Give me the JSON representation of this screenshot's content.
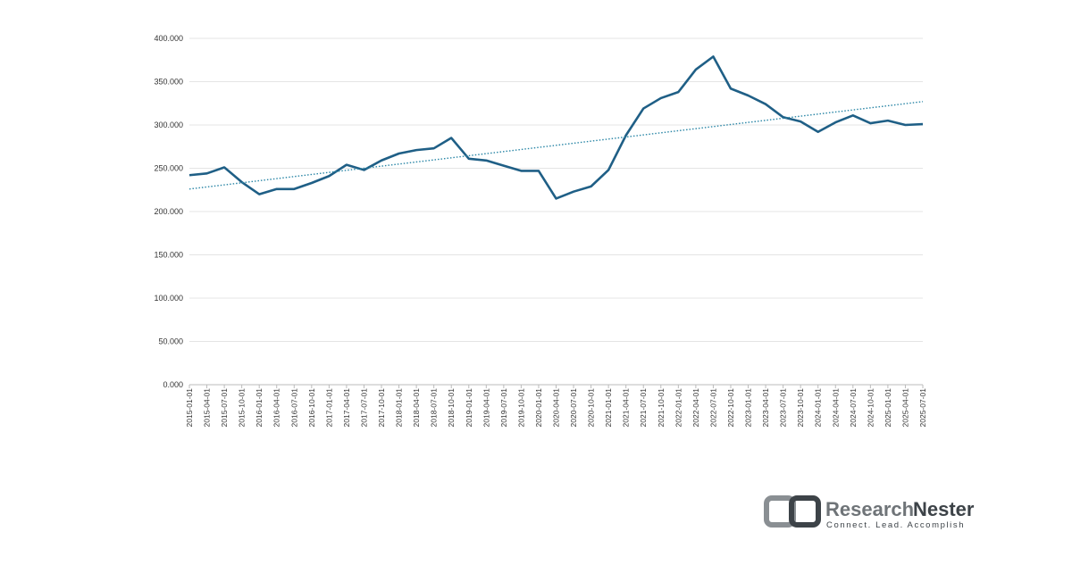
{
  "chart_data": {
    "type": "line",
    "categories": [
      "2015-01-01",
      "2015-04-01",
      "2015-07-01",
      "2015-10-01",
      "2016-01-01",
      "2016-04-01",
      "2016-07-01",
      "2016-10-01",
      "2017-01-01",
      "2017-04-01",
      "2017-07-01",
      "2017-10-01",
      "2018-01-01",
      "2018-04-01",
      "2018-07-01",
      "2018-10-01",
      "2019-01-01",
      "2019-04-01",
      "2019-07-01",
      "2019-10-01",
      "2020-01-01",
      "2020-04-01",
      "2020-07-01",
      "2020-10-01",
      "2021-01-01",
      "2021-04-01",
      "2021-07-01",
      "2021-10-01",
      "2022-01-01",
      "2022-04-01",
      "2022-07-01",
      "2022-10-01",
      "2023-01-01",
      "2023-04-01",
      "2023-07-01",
      "2023-10-01",
      "2024-01-01",
      "2024-04-01",
      "2024-07-01",
      "2024-10-01",
      "2025-01-01",
      "2025-04-01",
      "2025-07-01"
    ],
    "values": [
      242000,
      244000,
      251000,
      234000,
      220000,
      226000,
      226000,
      233000,
      241000,
      254000,
      248000,
      259000,
      267000,
      271000,
      273000,
      285000,
      261000,
      259000,
      253000,
      247000,
      247000,
      215000,
      223000,
      229000,
      248000,
      288000,
      319000,
      331000,
      338000,
      364000,
      379000,
      342000,
      334000,
      324000,
      309000,
      304000,
      292000,
      303000,
      311000,
      302000,
      305000,
      300000,
      301000
    ],
    "color": "#1f5f86",
    "trend": {
      "values": [
        226000,
        327000
      ],
      "color": "#2a86a6"
    },
    "ylim": [
      0,
      400000
    ],
    "yticks": [
      {
        "value": 0,
        "label": "0.000"
      },
      {
        "value": 50000,
        "label": "50.000"
      },
      {
        "value": 100000,
        "label": "100.000"
      },
      {
        "value": 150000,
        "label": "150.000"
      },
      {
        "value": 200000,
        "label": "200.000"
      },
      {
        "value": 250000,
        "label": "250.000"
      },
      {
        "value": 300000,
        "label": "300.000"
      },
      {
        "value": 350000,
        "label": "350.000"
      },
      {
        "value": 400000,
        "label": "400.000"
      }
    ],
    "grid": true
  },
  "logo": {
    "name_a": "Research",
    "name_b": "Nester",
    "tagline": "Connect. Lead. Accomplish"
  }
}
